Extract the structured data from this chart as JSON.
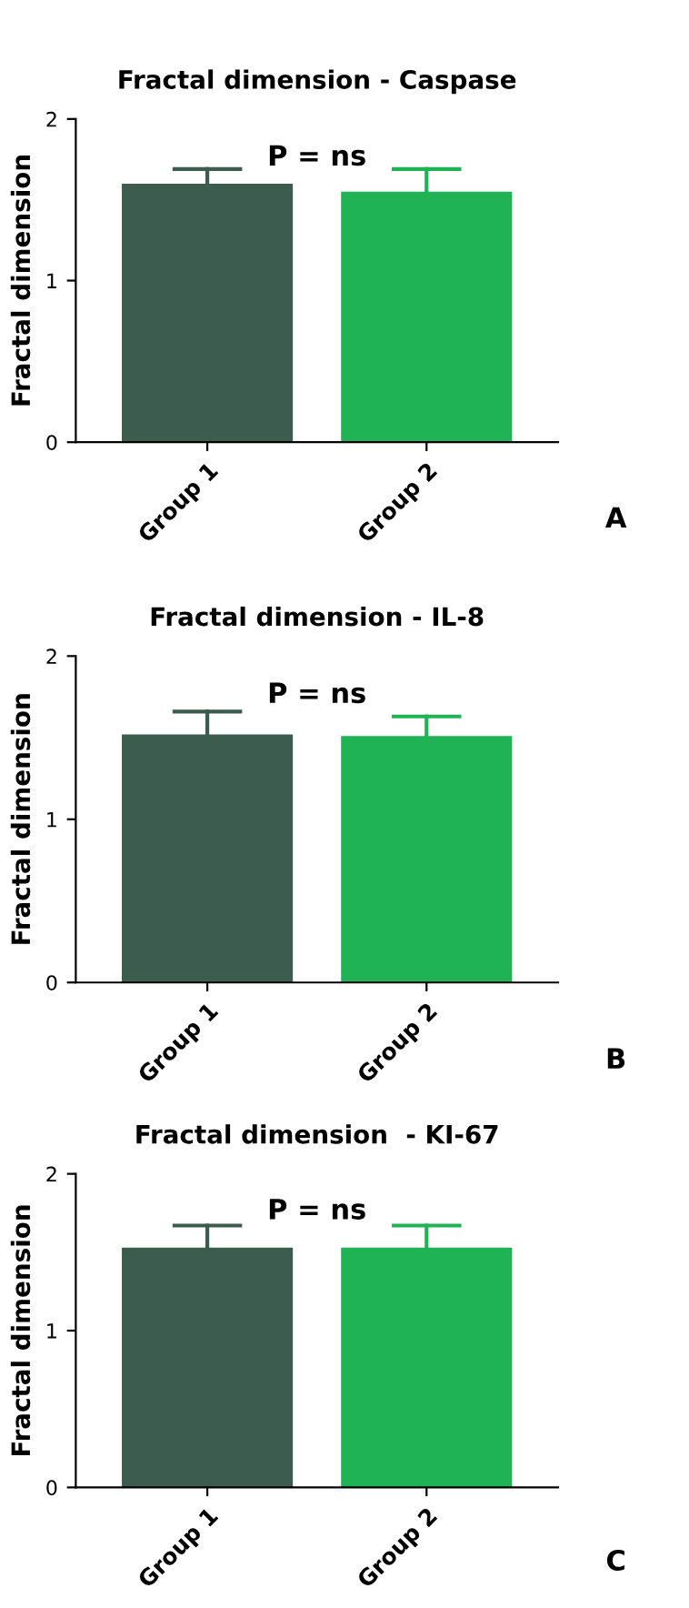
{
  "chart_data": [
    {
      "type": "bar",
      "title": "Fractal dimension - Caspase",
      "ylabel": "Fractal dimension",
      "categories": [
        "Group 1",
        "Group 2"
      ],
      "values": [
        1.6,
        1.55
      ],
      "colors": [
        "#3d5c50",
        "#1fb356"
      ],
      "errors": [
        [
          1.6,
          1.69
        ],
        [
          1.55,
          1.69
        ]
      ],
      "ylim": [
        0,
        2
      ],
      "yticks": [
        0,
        1,
        2
      ],
      "grid": false,
      "legend": false,
      "annotations": [
        "P = ns",
        "A"
      ]
    },
    {
      "type": "bar",
      "title": "Fractal dimension - IL-8",
      "ylabel": "Fractal dimension",
      "categories": [
        "Group 1",
        "Group 2"
      ],
      "values": [
        1.52,
        1.51
      ],
      "colors": [
        "#3d5c50",
        "#1fb356"
      ],
      "errors": [
        [
          1.52,
          1.66
        ],
        [
          1.51,
          1.63
        ]
      ],
      "ylim": [
        0,
        2
      ],
      "yticks": [
        0,
        1,
        2
      ],
      "grid": false,
      "legend": false,
      "annotations": [
        "P = ns",
        "B"
      ]
    },
    {
      "type": "bar",
      "title": "Fractal dimension  - KI-67",
      "ylabel": "Fractal dimension",
      "categories": [
        "Group 1",
        "Group 2"
      ],
      "values": [
        1.53,
        1.53
      ],
      "colors": [
        "#3d5c50",
        "#1fb356"
      ],
      "errors": [
        [
          1.53,
          1.67
        ],
        [
          1.53,
          1.67
        ]
      ],
      "ylim": [
        0,
        2
      ],
      "yticks": [
        0,
        1,
        2
      ],
      "grid": false,
      "legend": false,
      "annotations": [
        "P = ns",
        "C"
      ]
    }
  ]
}
